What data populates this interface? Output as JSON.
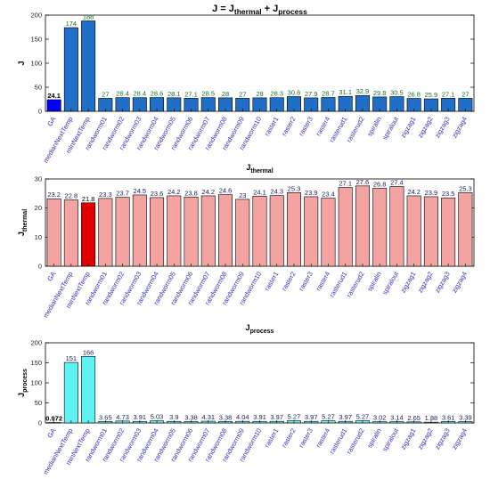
{
  "chart_data": [
    {
      "type": "bar",
      "title_main": "J = J",
      "title_sub1": "thermal",
      "title_mid": " + J",
      "title_sub2": "process",
      "ylabel_main": "J",
      "ylabel_sub": "",
      "ylim": [
        0,
        200
      ],
      "yticks": [
        0,
        50,
        100,
        150,
        200
      ],
      "bar_color": "#1f6fc8",
      "highlight_color": "#0000ff",
      "label_color": "#1a6b33",
      "categories": [
        "GA",
        "medianNextTemp",
        "minNextTemp",
        "randworm01",
        "randworm02",
        "randworm03",
        "randworm04",
        "randworm05",
        "randworm06",
        "randworm07",
        "randworm08",
        "randworm09",
        "randworm10",
        "raster1",
        "raster2",
        "raster3",
        "raster4",
        "rasterud1",
        "rasterud2",
        "spiralin",
        "spiralout",
        "zigzag1",
        "zigzag2",
        "zigzag3",
        "zigzag4"
      ],
      "values": [
        24.1,
        174,
        188,
        27,
        28.4,
        28.4,
        28.6,
        28.1,
        27.1,
        28.5,
        28,
        27,
        28,
        28.3,
        30.6,
        27.9,
        28.7,
        31.1,
        32.9,
        29.8,
        30.5,
        26.8,
        25.9,
        27.1,
        27
      ],
      "labels": [
        "24.1",
        "174",
        "188",
        "27",
        "28.4",
        "28.4",
        "28.6",
        "28.1",
        "27.1",
        "28.5",
        "28",
        "27",
        "28",
        "28.3",
        "30.6",
        "27.9",
        "28.7",
        "31.1",
        "32.9",
        "29.8",
        "30.5",
        "26.8",
        "25.9",
        "27.1",
        "27"
      ],
      "highlight_index": 0
    },
    {
      "type": "bar",
      "title_main": "J",
      "title_sub1": "thermal",
      "title_mid": "",
      "title_sub2": "",
      "ylabel_main": "J",
      "ylabel_sub": "thermal",
      "ylim": [
        0,
        30
      ],
      "yticks": [
        0,
        10,
        20,
        30
      ],
      "bar_color": "#f4a3a3",
      "highlight_color": "#e00000",
      "label_color": "#1a1a5a",
      "categories": [
        "GA",
        "medianNextTemp",
        "minNextTemp",
        "randworm01",
        "randworm02",
        "randworm03",
        "randworm04",
        "randworm05",
        "randworm06",
        "randworm07",
        "randworm08",
        "randworm09",
        "randworm10",
        "raster1",
        "raster2",
        "raster3",
        "raster4",
        "rasterud1",
        "rasterud2",
        "spiralin",
        "spiralout",
        "zigzag1",
        "zigzag2",
        "zigzag3",
        "zigzag4"
      ],
      "values": [
        23.2,
        22.8,
        21.8,
        23.3,
        23.7,
        24.5,
        23.6,
        24.2,
        23.8,
        24.2,
        24.6,
        23,
        24.1,
        24.3,
        25.3,
        23.9,
        23.4,
        27.1,
        27.6,
        26.8,
        27.4,
        24.2,
        23.9,
        23.5,
        25.3
      ],
      "labels": [
        "23.2",
        "22.8",
        "21.8",
        "23.3",
        "23.7",
        "24.5",
        "23.6",
        "24.2",
        "23.8",
        "24.2",
        "24.6",
        "23",
        "24.1",
        "24.3",
        "25.3",
        "23.9",
        "23.4",
        "27.1",
        "27.6",
        "26.8",
        "27.4",
        "24.2",
        "23.9",
        "23.5",
        "25.3"
      ],
      "highlight_index": 2
    },
    {
      "type": "bar",
      "title_main": "J",
      "title_sub1": "process",
      "title_mid": "",
      "title_sub2": "",
      "ylabel_main": "J",
      "ylabel_sub": "process",
      "ylim": [
        0,
        200
      ],
      "yticks": [
        0,
        50,
        100,
        150,
        200
      ],
      "bar_color": "#5ff2f2",
      "highlight_color": "#5ff2f2",
      "label_color": "#1a1a5a",
      "categories": [
        "GA",
        "medianNextTemp",
        "minNextTemp",
        "randworm01",
        "randworm02",
        "randworm03",
        "randworm04",
        "randworm05",
        "randworm06",
        "randworm07",
        "randworm08",
        "randworm09",
        "randworm10",
        "raster1",
        "raster2",
        "raster3",
        "raster4",
        "rasterud1",
        "rasterud2",
        "spiralin",
        "spiralout",
        "zigzag1",
        "zigzag2",
        "zigzag3",
        "zigzag4"
      ],
      "values": [
        0.972,
        151,
        166,
        3.65,
        4.73,
        3.91,
        5.03,
        3.9,
        3.38,
        4.31,
        3.38,
        4.04,
        3.91,
        3.97,
        5.27,
        3.97,
        5.27,
        3.97,
        5.27,
        3.02,
        3.14,
        2.65,
        1.88,
        3.61,
        3.39
      ],
      "labels": [
        "0.972",
        "151",
        "166",
        "3.65",
        "4.73",
        "3.91",
        "5.03",
        "3.9",
        "3.38",
        "4.31",
        "3.38",
        "4.04",
        "3.91",
        "3.97",
        "5.27",
        "3.97",
        "5.27",
        "3.97",
        "5.27",
        "3.02",
        "3.14",
        "2.65",
        "1.88",
        "3.61",
        "3.39"
      ],
      "highlight_index": 0
    }
  ]
}
